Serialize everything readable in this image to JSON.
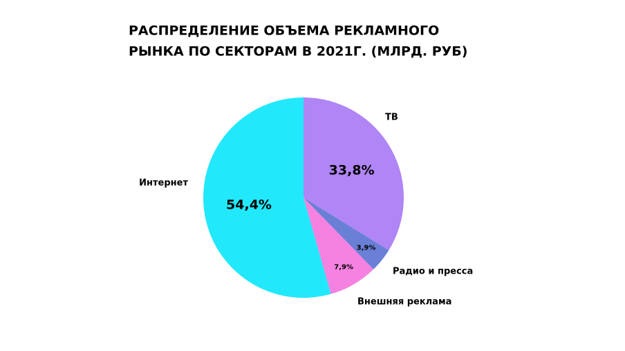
{
  "chart_data": {
    "type": "pie",
    "title": [
      "РАСПРЕДЕЛЕНИЕ ОБЪЕМА РЕКЛАМНОГО",
      "РЫНКА ПО СЕКТОРАМ В 2021Г. (МЛРД. РУБ)"
    ],
    "categories": [
      "ТВ",
      "Радио и пресса",
      "Внешняя реклама",
      "Интернет"
    ],
    "values": [
      33.8,
      3.9,
      7.9,
      54.4
    ],
    "value_labels": [
      "33,8%",
      "3,9%",
      "7,9%",
      "54,4%"
    ],
    "colors": [
      "#b085f5",
      "#6a7fd6",
      "#f582e0",
      "#22e8fb"
    ]
  }
}
